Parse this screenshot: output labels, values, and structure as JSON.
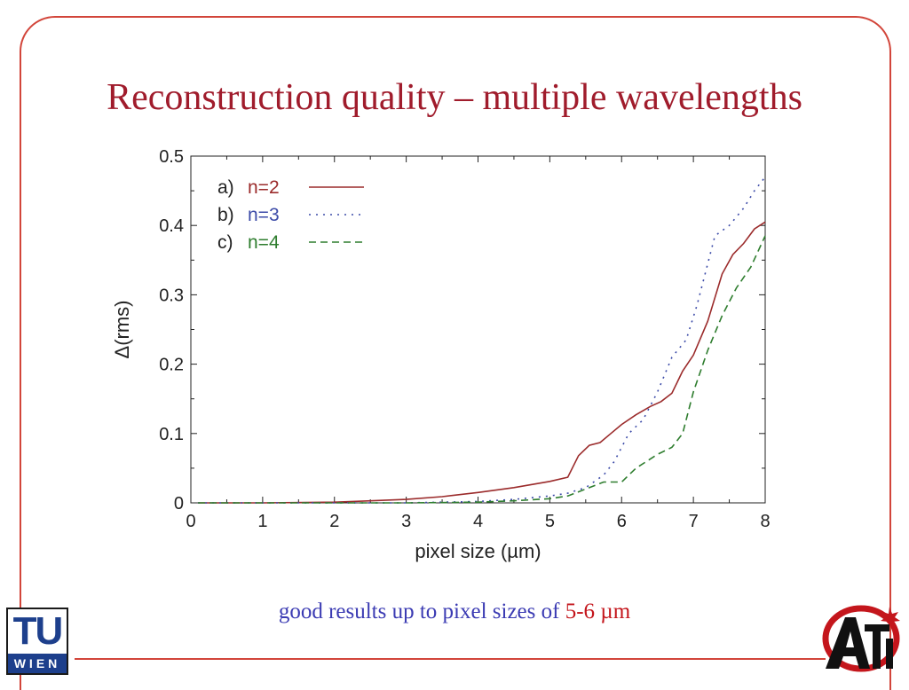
{
  "slide": {
    "title": "Reconstruction quality – multiple wavelengths",
    "caption_part1": "good results up to pixel sizes of ",
    "caption_part2": "5-6 µm",
    "logo_left": {
      "top": "TU",
      "bottom": "WIEN"
    },
    "logo_right": "Ati"
  },
  "chart_data": {
    "type": "line",
    "title": "",
    "xlabel": "pixel size (µm)",
    "ylabel": "Δ(rms)",
    "xlim": [
      0,
      8
    ],
    "ylim": [
      0,
      0.5
    ],
    "xticks": [
      0,
      1,
      2,
      3,
      4,
      5,
      6,
      7,
      8
    ],
    "yticks": [
      0,
      0.1,
      0.2,
      0.3,
      0.4,
      0.5
    ],
    "ytick_labels": [
      "0",
      "0.1",
      "0.2",
      "0.3",
      "0.4",
      "0.5"
    ],
    "grid": false,
    "legend_position": "top-left",
    "series": [
      {
        "label": "a)",
        "name": "n=2",
        "color": "#9b2b2b",
        "style": "solid",
        "x": [
          0.1,
          1,
          2,
          2.5,
          3,
          3.5,
          4,
          4.5,
          5,
          5.25,
          5.4,
          5.55,
          5.7,
          5.85,
          6.0,
          6.2,
          6.4,
          6.55,
          6.7,
          6.85,
          7.0,
          7.2,
          7.4,
          7.55,
          7.7,
          7.85,
          8.0
        ],
        "y": [
          0,
          0,
          0.001,
          0.003,
          0.005,
          0.009,
          0.015,
          0.022,
          0.031,
          0.037,
          0.068,
          0.083,
          0.087,
          0.1,
          0.113,
          0.127,
          0.139,
          0.146,
          0.158,
          0.19,
          0.213,
          0.262,
          0.33,
          0.358,
          0.374,
          0.395,
          0.405
        ]
      },
      {
        "label": "b)",
        "name": "n=3",
        "color": "#3c4ba8",
        "style": "dotted",
        "x": [
          0.1,
          1,
          2,
          3,
          4,
          4.5,
          5.0,
          5.25,
          5.5,
          5.75,
          5.9,
          6.0,
          6.1,
          6.3,
          6.5,
          6.7,
          6.9,
          7.05,
          7.3,
          7.5,
          7.7,
          7.85,
          8.0
        ],
        "y": [
          0,
          0,
          0,
          0,
          0.002,
          0.005,
          0.01,
          0.014,
          0.022,
          0.04,
          0.06,
          0.08,
          0.1,
          0.12,
          0.16,
          0.21,
          0.235,
          0.285,
          0.385,
          0.4,
          0.425,
          0.45,
          0.47
        ]
      },
      {
        "label": "c)",
        "name": "n=4",
        "color": "#2e7d2e",
        "style": "dashed",
        "x": [
          0.1,
          1,
          2,
          3,
          4,
          4.5,
          5.0,
          5.25,
          5.5,
          5.75,
          6.0,
          6.2,
          6.5,
          6.7,
          6.85,
          7.0,
          7.2,
          7.4,
          7.6,
          7.8,
          8.0
        ],
        "y": [
          0,
          0,
          0,
          0,
          0.001,
          0.003,
          0.006,
          0.01,
          0.02,
          0.03,
          0.03,
          0.05,
          0.07,
          0.08,
          0.1,
          0.16,
          0.22,
          0.27,
          0.31,
          0.34,
          0.385
        ]
      }
    ]
  }
}
